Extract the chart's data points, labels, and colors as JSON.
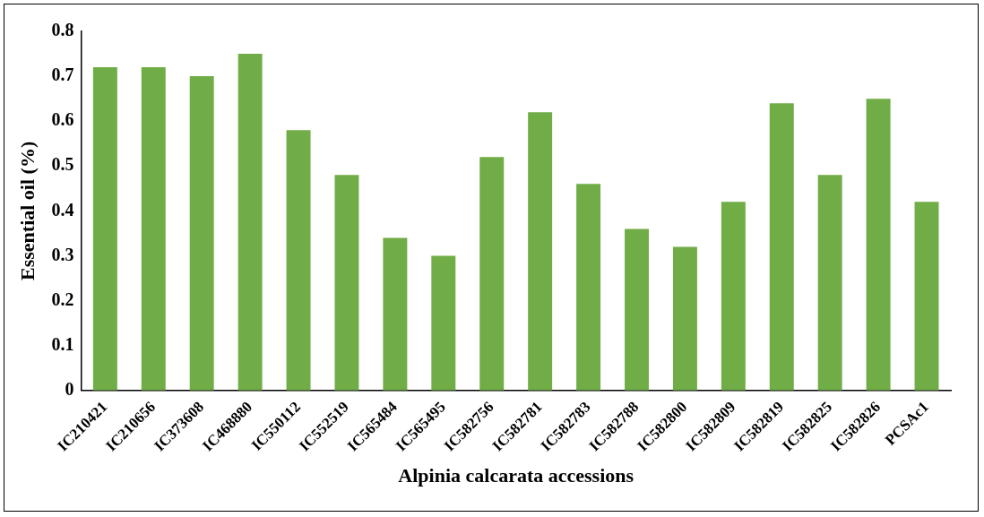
{
  "chart_data": {
    "type": "bar",
    "xlabel": "Alpinia calcarata accessions",
    "ylabel": "Essential oil (%)",
    "categories": [
      "IC210421",
      "IC210656",
      "IC373608",
      "IC468880",
      "IC550112",
      "IC552519",
      "IC565484",
      "IC565495",
      "IC582756",
      "IC582781",
      "IC582783",
      "IC582788",
      "IC582800",
      "IC582809",
      "IC582819",
      "IC582825",
      "IC582826",
      "PCSAc1"
    ],
    "values": [
      0.72,
      0.72,
      0.7,
      0.75,
      0.58,
      0.48,
      0.34,
      0.3,
      0.52,
      0.62,
      0.46,
      0.36,
      0.32,
      0.42,
      0.64,
      0.48,
      0.65,
      0.42
    ],
    "color": "#70ad47",
    "ylim": [
      0,
      0.8
    ],
    "yticks": [
      0,
      0.1,
      0.2,
      0.3,
      0.4,
      0.5,
      0.6,
      0.7,
      0.8
    ],
    "grid": false,
    "legend": false
  }
}
